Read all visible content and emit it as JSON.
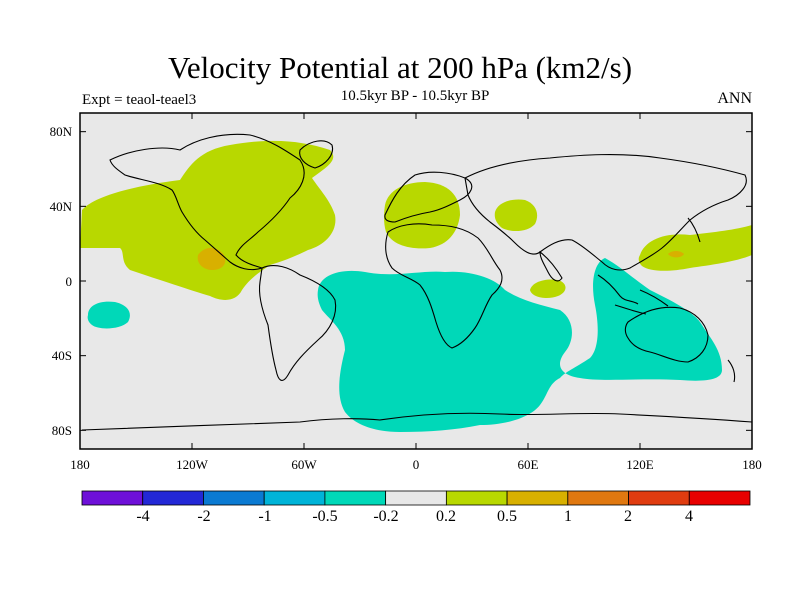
{
  "title": "Velocity Potential at 200 hPa (km2/s)",
  "subtitle": "10.5kyr BP - 10.5kyr BP",
  "experiment": "Expt = teaol-teael3",
  "season": "ANN",
  "chart_data": {
    "type": "map",
    "projection": "cylindrical equidistant",
    "xlim": [
      -180,
      180
    ],
    "ylim": [
      -90,
      90
    ],
    "y_ticks": [
      "80N",
      "40N",
      "0",
      "40S",
      "80S"
    ],
    "x_ticks": [
      "180",
      "120W",
      "60W",
      "0",
      "60E",
      "120E",
      "180"
    ],
    "colorbar": {
      "labels": [
        "-4",
        "-2",
        "-1",
        "-0.5",
        "-0.2",
        "0.2",
        "0.5",
        "1",
        "2",
        "4"
      ],
      "colors": [
        "#6e10d8",
        "#2328d6",
        "#0a7ad2",
        "#00b4d8",
        "#00d8b8",
        "#e8e8e8",
        "#b8d800",
        "#d8b000",
        "#e07810",
        "#e03c10",
        "#e80000"
      ]
    },
    "regions": [
      {
        "name": "North America / North Pacific",
        "range": "0.2 to 0.5"
      },
      {
        "name": "Eastern tropical Pacific core",
        "range": "0.5 to 1"
      },
      {
        "name": "Europe / Mediterranean",
        "range": "0.2 to 0.5"
      },
      {
        "name": "Middle East",
        "range": "0.2 to 0.5"
      },
      {
        "name": "Western Pacific",
        "range": "0.2 to 0.5"
      },
      {
        "name": "South Atlantic / Southern Ocean",
        "range": "-0.5 to -0.2"
      },
      {
        "name": "Maritime Continent / Indian Ocean",
        "range": "-0.5 to -0.2"
      },
      {
        "name": "South Pacific",
        "range": "-0.5 to -0.2"
      }
    ]
  }
}
